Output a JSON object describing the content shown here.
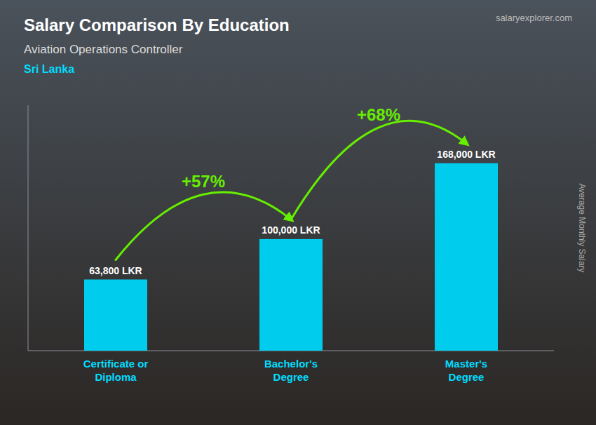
{
  "chart_data": {
    "type": "bar",
    "title": "Salary Comparison By Education",
    "subtitle": "Aviation Operations Controller",
    "ylabel": "Average Monthly Salary",
    "annotations": [
      "Sri Lanka",
      "salaryexplorer.com",
      "+57%",
      "+68%"
    ],
    "categories": [
      "Certificate or\nDiploma",
      "Bachelor's\nDegree",
      "Master's\nDegree"
    ],
    "values": [
      63800,
      100000,
      168000
    ],
    "value_labels": [
      "63,800 LKR",
      "100,000 LKR",
      "168,000 LKR"
    ],
    "color": "#00CCEE",
    "ylim": [
      0,
      220000
    ],
    "data_labels": true,
    "tick_labels": "x",
    "grid": false
  }
}
